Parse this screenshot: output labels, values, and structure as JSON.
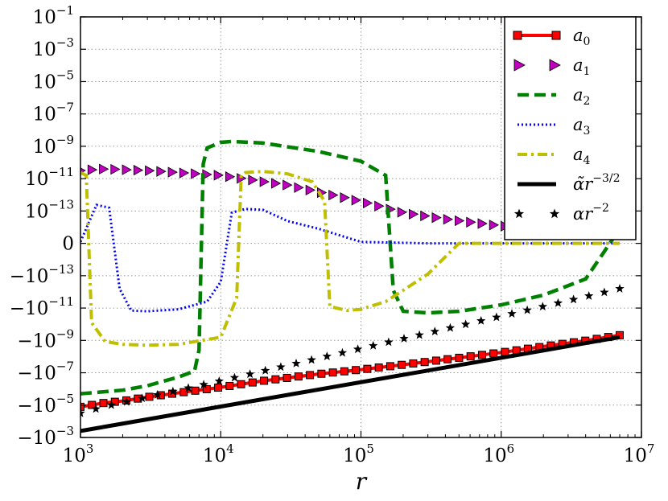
{
  "chart_data": {
    "type": "line",
    "xlabel": "r",
    "xscale": "log",
    "yscale": "symlog",
    "xlim": [
      1000,
      10000000
    ],
    "grid": true,
    "legend_position": "top-right",
    "x_ticks": [
      {
        "base": "10",
        "exp": "3",
        "value": 1000
      },
      {
        "base": "10",
        "exp": "4",
        "value": 10000
      },
      {
        "base": "10",
        "exp": "5",
        "value": 100000
      },
      {
        "base": "10",
        "exp": "6",
        "value": 1000000
      },
      {
        "base": "10",
        "exp": "7",
        "value": 10000000
      }
    ],
    "y_ticks": [
      {
        "base": "10",
        "exp": "−1",
        "value": 0.1
      },
      {
        "base": "10",
        "exp": "−3",
        "value": 0.001
      },
      {
        "base": "10",
        "exp": "−5",
        "value": 1e-05
      },
      {
        "base": "10",
        "exp": "−7",
        "value": 1e-07
      },
      {
        "base": "10",
        "exp": "−9",
        "value": 1e-09
      },
      {
        "base": "10",
        "exp": "−11",
        "value": 1e-11
      },
      {
        "base": "10",
        "exp": "−13",
        "value": 1e-13
      },
      {
        "base": "0",
        "exp": "",
        "value": 0
      },
      {
        "base": "−10",
        "exp": "−13",
        "value": -1e-13
      },
      {
        "base": "−10",
        "exp": "−11",
        "value": -1e-11
      },
      {
        "base": "−10",
        "exp": "−9",
        "value": -1e-09
      },
      {
        "base": "−10",
        "exp": "−7",
        "value": -1e-07
      },
      {
        "base": "−10",
        "exp": "−5",
        "value": -1e-05
      },
      {
        "base": "−10",
        "exp": "−3",
        "value": -0.001
      }
    ],
    "series": [
      {
        "name": "a0",
        "legend_base": "a",
        "legend_sub": "0",
        "color": "#ff0000",
        "style": "solid-square-markers",
        "x": [
          1000,
          1500,
          2000,
          3000,
          5000,
          10000,
          20000,
          50000,
          100000,
          200000,
          500000,
          1000000,
          2000000,
          4000000,
          7000000
        ],
        "y": [
          -1.6e-05,
          -9e-06,
          -7e-06,
          -4e-06,
          -2.2e-06,
          -1e-06,
          -4e-07,
          -1.5e-07,
          -8e-08,
          -4e-08,
          -1.5e-08,
          -7e-09,
          -3e-09,
          -1.3e-09,
          -6e-10
        ]
      },
      {
        "name": "a1",
        "legend_base": "a",
        "legend_sub": "1",
        "color": "#bf00bf",
        "style": "triangle-markers",
        "x": [
          1000,
          1500,
          3000,
          10000,
          30000,
          100000,
          200000,
          400000,
          1000000,
          3000000,
          7000000
        ],
        "y": [
          4e-11,
          5e-11,
          4e-11,
          2e-11,
          5e-12,
          5e-13,
          1e-13,
          4e-14,
          1.5e-14,
          1e-14,
          1e-14
        ]
      },
      {
        "name": "a2",
        "legend_base": "a",
        "legend_sub": "2",
        "color": "#008000",
        "style": "dashed",
        "x": [
          1000,
          2000,
          3000,
          5000,
          6500,
          7000,
          7500,
          8000,
          10000,
          12000,
          20000,
          50000,
          100000,
          150000,
          170000,
          200000,
          300000,
          500000,
          1000000,
          2000000,
          4000000,
          7000000
        ],
        "y": [
          -2.5e-06,
          -1.5e-06,
          -8e-07,
          -2.3e-07,
          -1e-07,
          -5e-09,
          1e-10,
          1e-09,
          2.2e-09,
          2.5e-09,
          2e-09,
          6e-10,
          1.5e-10,
          2e-11,
          -1e-12,
          -2e-11,
          -2.5e-11,
          -2e-11,
          -8e-12,
          -2e-12,
          -2e-13,
          1e-14
        ]
      },
      {
        "name": "a3",
        "legend_base": "a",
        "legend_sub": "3",
        "color": "#0000ff",
        "style": "dotted",
        "x": [
          1000,
          1300,
          1600,
          1900,
          2300,
          3000,
          5000,
          8000,
          10000,
          12000,
          15000,
          20000,
          30000,
          50000,
          100000,
          300000,
          7000000
        ],
        "y": [
          1e-15,
          3e-13,
          2e-13,
          -8e-13,
          -1.8e-11,
          -2e-11,
          -1.5e-11,
          -5e-12,
          -3e-13,
          1e-13,
          1.7e-13,
          1.5e-13,
          3e-14,
          1e-14,
          1e-15,
          0,
          0
        ]
      },
      {
        "name": "a4",
        "legend_base": "a",
        "legend_sub": "4",
        "color": "#bfbf00",
        "style": "dash-dot",
        "x": [
          1000,
          1100,
          1200,
          1500,
          2000,
          3000,
          5000,
          10000,
          13000,
          14000,
          15000,
          20000,
          30000,
          45000,
          55000,
          60000,
          80000,
          100000,
          150000,
          200000,
          300000,
          500000,
          1000000,
          7000000
        ],
        "y": [
          3e-11,
          2e-11,
          -1e-10,
          -1.5e-09,
          -2.2e-09,
          -2.5e-09,
          -2.2e-09,
          -8e-10,
          -3e-12,
          2e-11,
          3e-11,
          3.5e-11,
          2.5e-11,
          8e-12,
          5e-13,
          -1e-11,
          -1.8e-11,
          -1.5e-11,
          -5e-12,
          -1e-12,
          -1e-13,
          0,
          0,
          0
        ]
      },
      {
        "name": "α̃ r^(−3/2)",
        "legend_base": "α̃r",
        "legend_sup": "−3/2",
        "color": "#000000",
        "style": "solid-thick",
        "x": [
          1000,
          7000000
        ],
        "y": [
          -0.0005,
          -8e-10
        ]
      },
      {
        "name": "α r^(−2)",
        "legend_base": "αr",
        "legend_sup": "−2",
        "color": "#000000",
        "style": "star-markers",
        "x": [
          1000,
          1500,
          2000,
          3000,
          5000,
          10000,
          20000,
          50000,
          100000,
          200000,
          500000,
          1000000,
          2000000,
          4000000,
          7000000
        ],
        "y": [
          -4e-05,
          -1.5e-05,
          -9e-06,
          -4e-06,
          -1.5e-06,
          -4e-07,
          -1e-07,
          -1.6e-08,
          -4e-09,
          -1e-09,
          -1.6e-10,
          -4e-11,
          -1e-11,
          -2.5e-12,
          -8e-13
        ]
      }
    ]
  }
}
